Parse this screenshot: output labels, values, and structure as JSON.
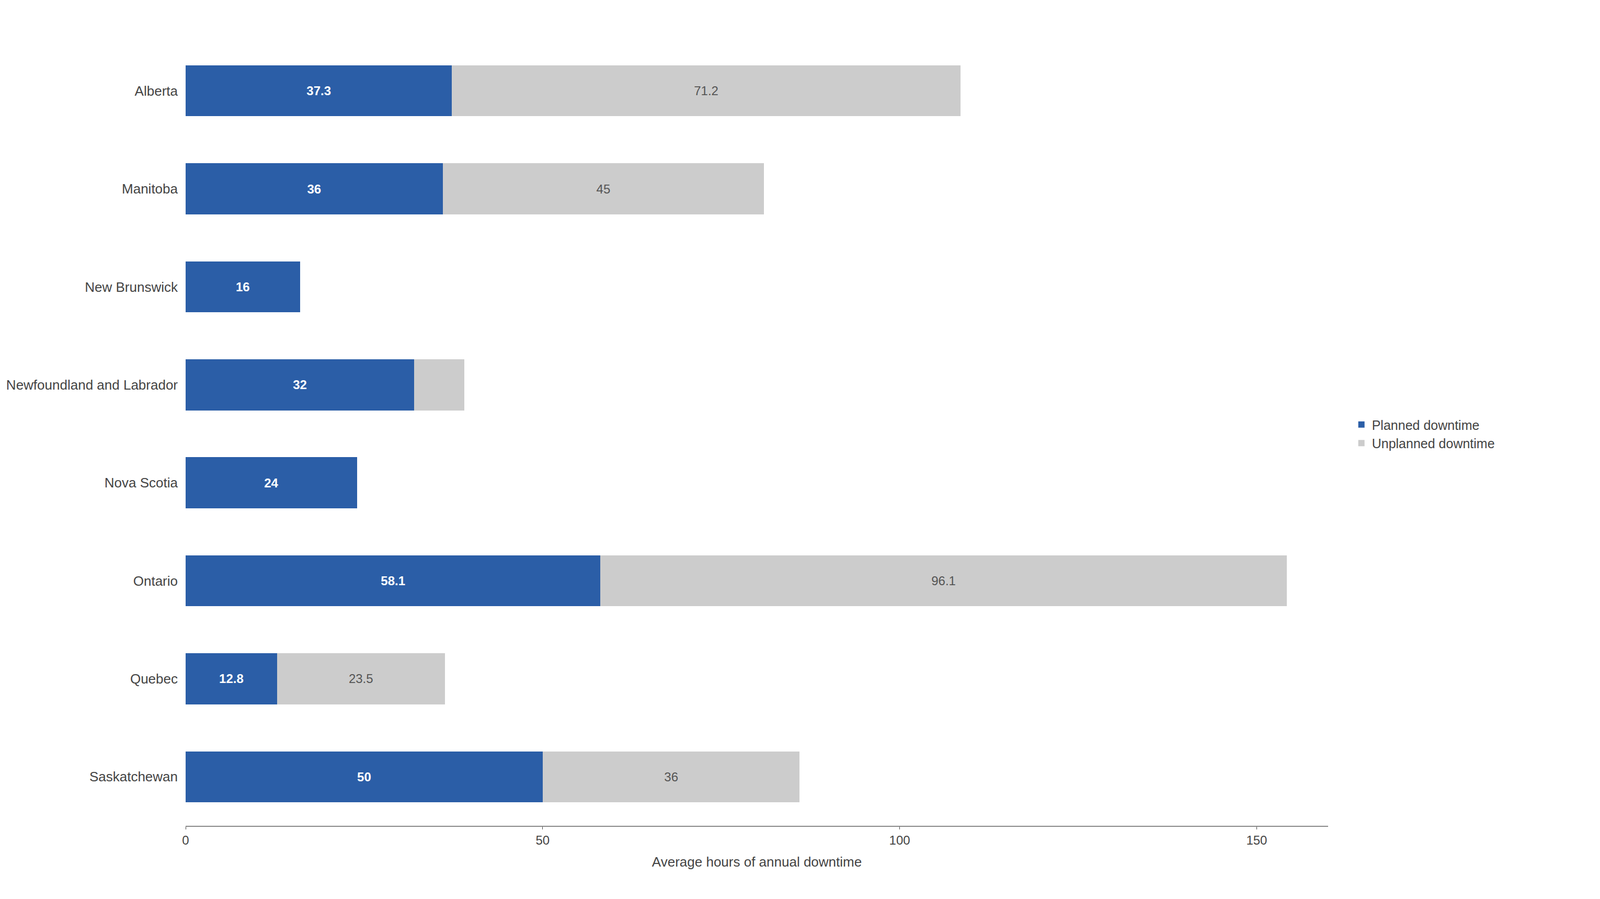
{
  "chart_data": {
    "type": "bar",
    "orientation": "horizontal",
    "stacked": true,
    "categories": [
      "Alberta",
      "Manitoba",
      "New Brunswick",
      "Newfoundland and Labrador",
      "Nova Scotia",
      "Ontario",
      "Quebec",
      "Saskatchewan"
    ],
    "series": [
      {
        "name": "Planned downtime",
        "color": "#2B5EA7",
        "values": [
          37.3,
          36.0,
          16.0,
          32.0,
          24.0,
          58.1,
          12.8,
          50.0
        ]
      },
      {
        "name": "Unplanned downtime",
        "color": "#CCCCCC",
        "values": [
          71.2,
          45.0,
          0.0,
          7.0,
          0.0,
          96.1,
          23.5,
          36.0
        ],
        "value_labels": [
          "71.2",
          "45",
          null,
          null,
          null,
          "96.1",
          "23.5",
          "36"
        ]
      }
    ],
    "x_label": "Average hours of annual downtime",
    "xlim": [
      0,
      160
    ],
    "xticks": [
      0,
      50,
      100,
      150
    ],
    "data_labels": true,
    "grid": false,
    "legend": "right"
  }
}
